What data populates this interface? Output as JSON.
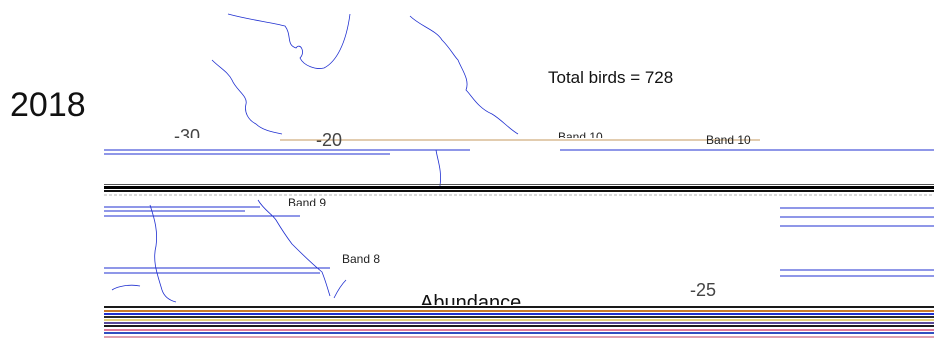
{
  "header": {
    "year": "2018",
    "total": "Total birds = 728"
  },
  "map": {
    "tick_labels": [
      "-30",
      "-20",
      "-25"
    ],
    "band_labels": [
      "Band 10",
      "Band 10",
      "Band 9",
      "Band 8"
    ],
    "legend_title": "Abundance",
    "colors": {
      "coastline": "#1f2fd0",
      "stripe_dark": "#000000",
      "stripe_orange": "#c97a2a",
      "stripe_pink": "#e07a9a",
      "stripe_yellow": "#e6d27a"
    }
  }
}
